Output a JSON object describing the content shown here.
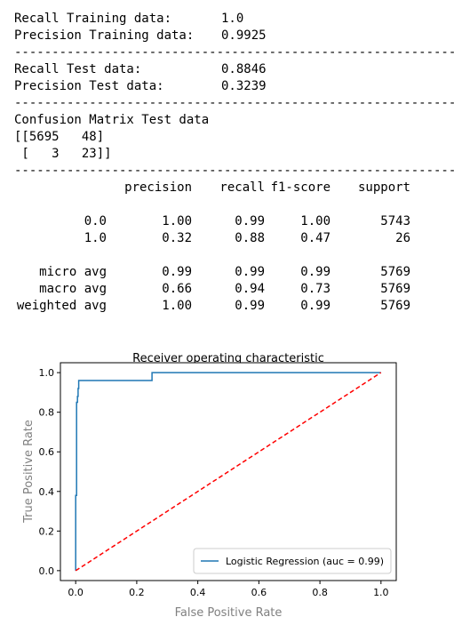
{
  "metrics": {
    "separator": "----------------------------------------------------------------------",
    "train": [
      {
        "label": "Recall Training data:",
        "value": "1.0"
      },
      {
        "label": "Precision Training data:",
        "value": "0.9925"
      }
    ],
    "test": [
      {
        "label": "Recall Test data:",
        "value": "0.8846"
      },
      {
        "label": "Precision Test data:",
        "value": "0.3239"
      }
    ]
  },
  "confusion": {
    "title": "Confusion Matrix Test data",
    "line1": "[[5695   48]",
    "line2": " [   3   23]]"
  },
  "report": {
    "headers": [
      "",
      "precision",
      "recall",
      "f1-score",
      "support"
    ],
    "rows": [
      {
        "label": "0.0",
        "precision": "1.00",
        "recall": "0.99",
        "f1": "1.00",
        "support": "5743"
      },
      {
        "label": "1.0",
        "precision": "0.32",
        "recall": "0.88",
        "f1": "0.47",
        "support": "26"
      }
    ],
    "avg_rows": [
      {
        "label": "micro avg",
        "precision": "0.99",
        "recall": "0.99",
        "f1": "0.99",
        "support": "5769"
      },
      {
        "label": "macro avg",
        "precision": "0.66",
        "recall": "0.94",
        "f1": "0.73",
        "support": "5769"
      },
      {
        "label": "weighted avg",
        "precision": "1.00",
        "recall": "0.99",
        "f1": "0.99",
        "support": "5769"
      }
    ]
  },
  "chart_data": {
    "type": "line",
    "title": "Receiver operating characteristic",
    "xlabel": "False Positive Rate",
    "ylabel": "True Positive Rate",
    "xlim": [
      -0.05,
      1.05
    ],
    "ylim": [
      -0.05,
      1.05
    ],
    "xticks": [
      "0.0",
      "0.2",
      "0.4",
      "0.6",
      "0.8",
      "1.0"
    ],
    "yticks": [
      "0.0",
      "0.2",
      "0.4",
      "0.6",
      "0.8",
      "1.0"
    ],
    "legend_position": "lower right",
    "series": [
      {
        "name": "Logistic Regression (auc = 0.99)",
        "color": "#1f77b4",
        "style": "solid",
        "x": [
          0.0,
          0.0,
          0.003,
          0.003,
          0.006,
          0.006,
          0.008,
          0.008,
          0.01,
          0.01,
          0.25,
          0.25,
          1.0
        ],
        "y": [
          0.0,
          0.38,
          0.38,
          0.85,
          0.85,
          0.88,
          0.88,
          0.92,
          0.92,
          0.96,
          0.96,
          1.0,
          1.0
        ]
      },
      {
        "name": "",
        "color": "#ff0000",
        "style": "dashed",
        "x": [
          0.0,
          1.0
        ],
        "y": [
          0.0,
          1.0
        ]
      }
    ]
  }
}
